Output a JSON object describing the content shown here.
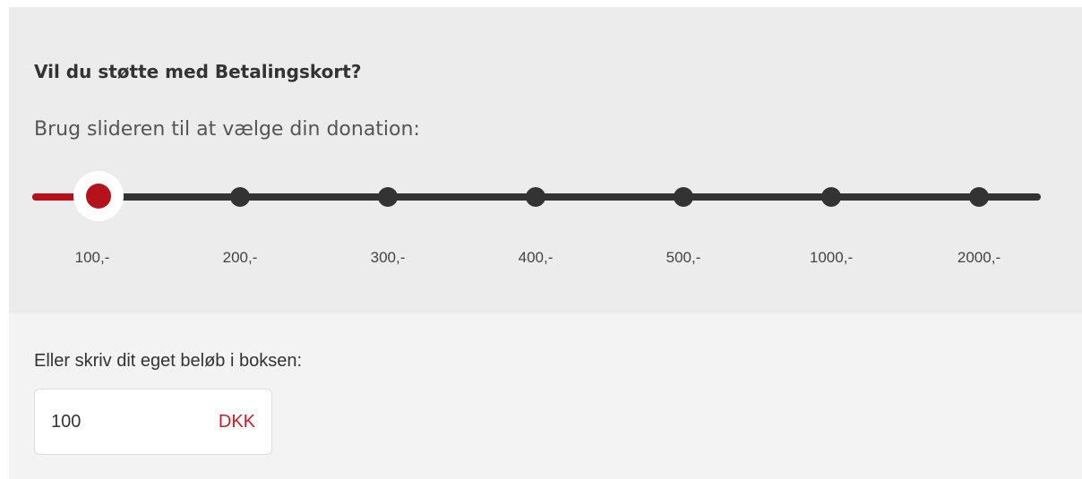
{
  "title": "Vil du støtte med Betalingskort?",
  "subtitle": "Brug slideren til at vælge din donation:",
  "slider": {
    "labels": [
      "100,-",
      "200,-",
      "300,-",
      "400,-",
      "500,-",
      "1000,-",
      "2000,-"
    ]
  },
  "custom": {
    "label": "Eller skriv dit eget beløb i boksen:",
    "input_value": "100",
    "currency": "DKK"
  }
}
